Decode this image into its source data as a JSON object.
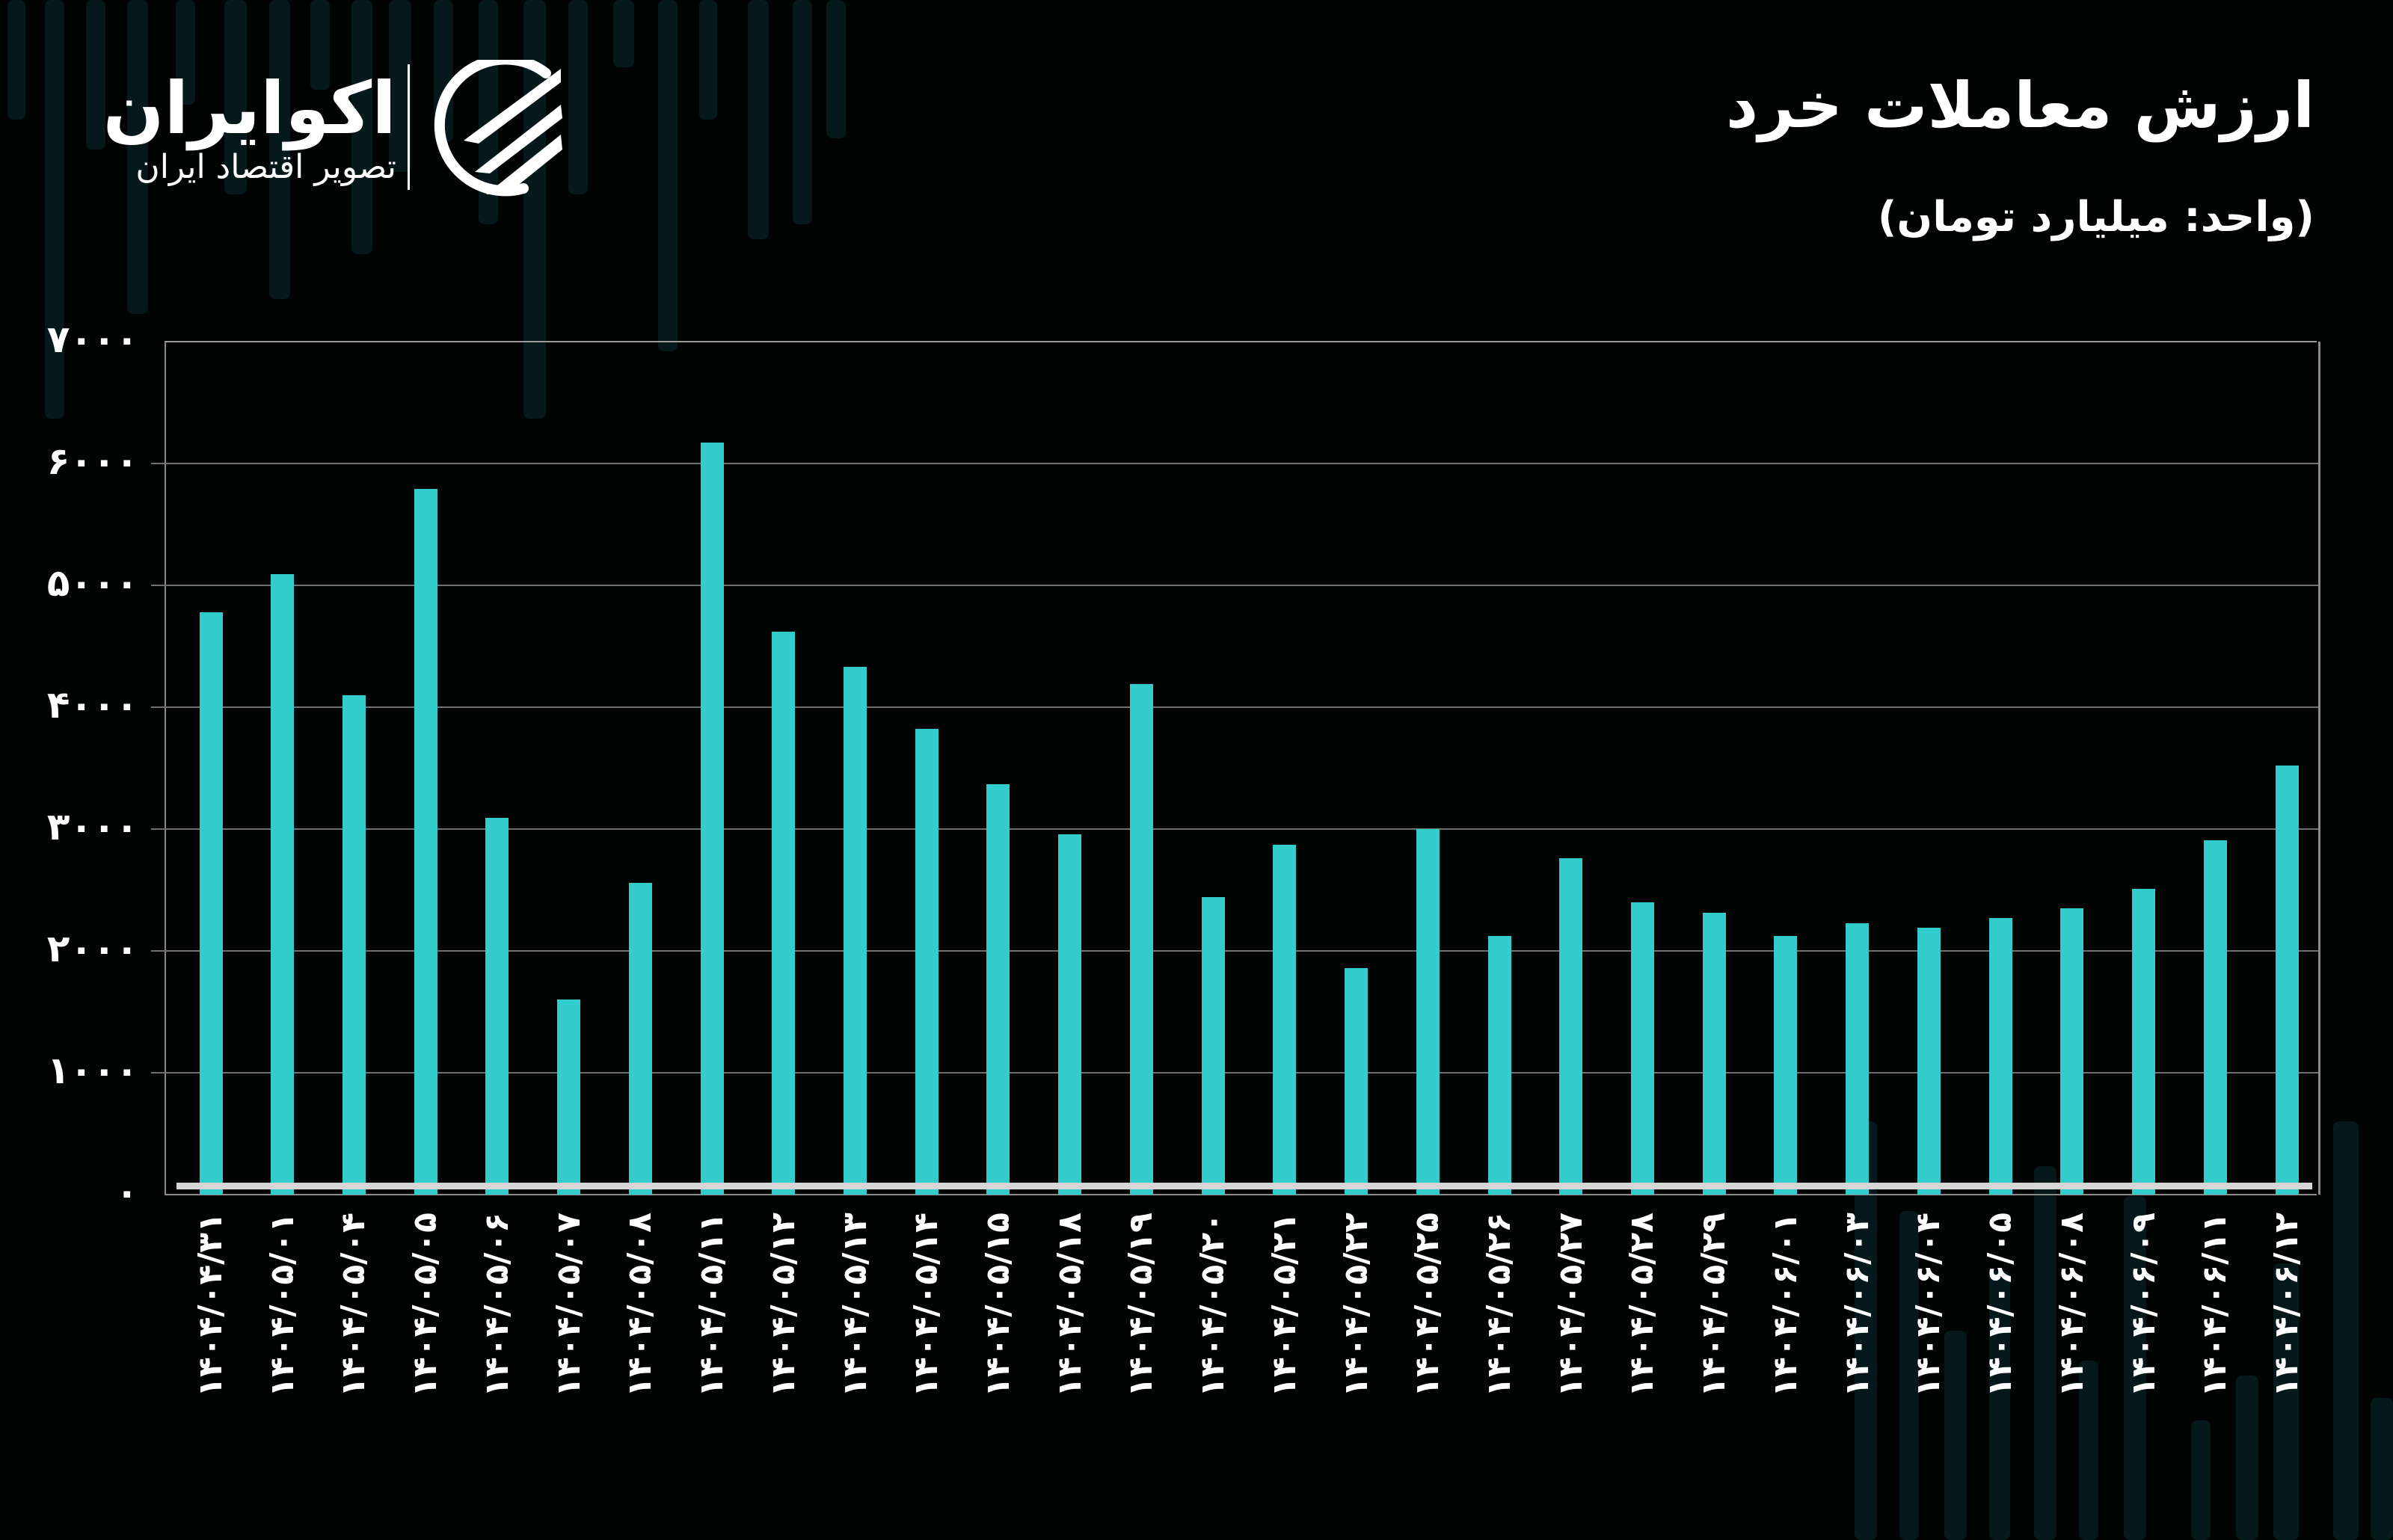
{
  "header": {
    "title": "ارزش معاملات خرد",
    "subtitle": "(واحد: میلیارد تومان)"
  },
  "logo": {
    "name": "اکوایران",
    "tagline": "تصویر اقتصاد ایران"
  },
  "colors": {
    "background": "#020404",
    "bar": "#33cccc",
    "text": "#ffffff",
    "grid": "#6f6f6f",
    "decorative_bars": "#05181c"
  },
  "y_axis": {
    "ticks": [
      "۷۰۰۰",
      "۶۰۰۰",
      "۵۰۰۰",
      "۴۰۰۰",
      "۳۰۰۰",
      "۲۰۰۰",
      "۱۰۰۰",
      "۰"
    ]
  },
  "chart_data": {
    "type": "bar",
    "title": "ارزش معاملات خرد",
    "subtitle": "(واحد: میلیارد تومان)",
    "xlabel": "",
    "ylabel": "میلیارد تومان",
    "ylim": [
      0,
      7000
    ],
    "yticks": [
      0,
      1000,
      2000,
      3000,
      4000,
      5000,
      6000,
      7000
    ],
    "grid": true,
    "legend": null,
    "categories": [
      "۱۴۰۴/۰۴/۳۱",
      "۱۴۰۴/۰۵/۰۱",
      "۱۴۰۴/۰۵/۰۴",
      "۱۴۰۴/۰۵/۰۵",
      "۱۴۰۴/۰۵/۰۶",
      "۱۴۰۴/۰۵/۰۷",
      "۱۴۰۴/۰۵/۰۸",
      "۱۴۰۴/۰۵/۱۱",
      "۱۴۰۴/۰۵/۱۲",
      "۱۴۰۴/۰۵/۱۳",
      "۱۴۰۴/۰۵/۱۴",
      "۱۴۰۴/۰۵/۱۵",
      "۱۴۰۴/۰۵/۱۸",
      "۱۴۰۴/۰۵/۱۹",
      "۱۴۰۴/۰۵/۲۰",
      "۱۴۰۴/۰۵/۲۱",
      "۱۴۰۴/۰۵/۲۲",
      "۱۴۰۴/۰۵/۲۵",
      "۱۴۰۴/۰۵/۲۶",
      "۱۴۰۴/۰۵/۲۷",
      "۱۴۰۴/۰۵/۲۸",
      "۱۴۰۴/۰۵/۲۹",
      "۱۴۰۴/۰۶/۰۱",
      "۱۴۰۴/۰۶/۰۳",
      "۱۴۰۴/۰۶/۰۴",
      "۱۴۰۴/۰۶/۰۵",
      "۱۴۰۴/۰۶/۰۸",
      "۱۴۰۴/۰۶/۰۹",
      "۱۴۰۴/۰۶/۱۱",
      "۱۴۰۴/۰۶/۱۲"
    ],
    "values": [
      4780,
      5090,
      4100,
      5790,
      3090,
      1600,
      2560,
      6170,
      4620,
      4330,
      3820,
      3370,
      2960,
      4190,
      2440,
      2870,
      1860,
      3000,
      2120,
      2760,
      2400,
      2310,
      2120,
      2230,
      2190,
      2270,
      2350,
      2510,
      2910,
      3520
    ]
  }
}
